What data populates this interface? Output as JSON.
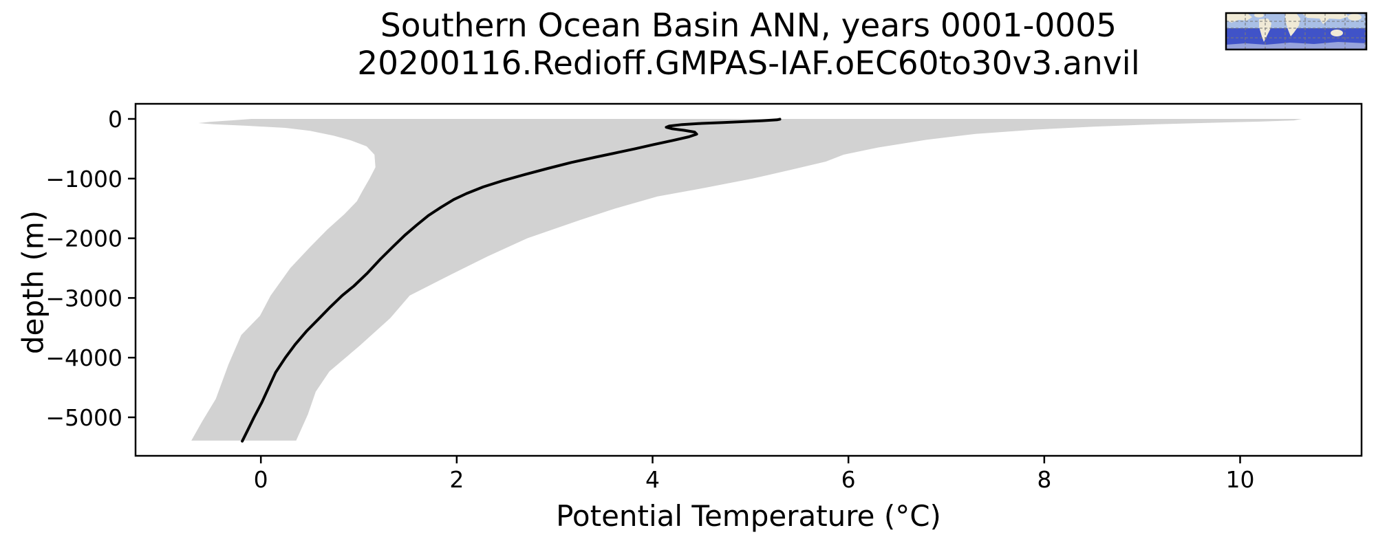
{
  "title": {
    "line1": "Southern Ocean Basin ANN, years 0001-0005",
    "line2": "20200116.Redioff.GMPAS-IAF.oEC60to30v3.anvil"
  },
  "chart_data": {
    "type": "line",
    "title": "Southern Ocean Basin ANN, years 0001-0005",
    "subtitle": "20200116.Redioff.GMPAS-IAF.oEC60to30v3.anvil",
    "xlabel": "Potential Temperature (°C)",
    "ylabel": "depth (m)",
    "xlim": [
      -1.28,
      11.24
    ],
    "ylim": [
      -5645,
      253
    ],
    "grid": false,
    "legend": "none",
    "x_ticks": [
      0,
      2,
      4,
      6,
      8,
      10
    ],
    "x_tick_labels": [
      "0",
      "2",
      "4",
      "6",
      "8",
      "10"
    ],
    "y_ticks": [
      0,
      -1000,
      -2000,
      -3000,
      -4000,
      -5000
    ],
    "y_tick_labels": [
      "0",
      "−1000",
      "−2000",
      "−3000",
      "−4000",
      "−5000"
    ],
    "series": [
      {
        "name": "mean_temperature_profile",
        "type": "line",
        "color": "#000000",
        "line_width": 4,
        "points_depth_temp": [
          [
            -5,
            5.3
          ],
          [
            -15,
            5.27
          ],
          [
            -30,
            5.12
          ],
          [
            -45,
            4.93
          ],
          [
            -60,
            4.72
          ],
          [
            -75,
            4.5
          ],
          [
            -95,
            4.3
          ],
          [
            -120,
            4.17
          ],
          [
            -140,
            4.14
          ],
          [
            -165,
            4.2
          ],
          [
            -190,
            4.32
          ],
          [
            -220,
            4.43
          ],
          [
            -255,
            4.45
          ],
          [
            -300,
            4.37
          ],
          [
            -360,
            4.21
          ],
          [
            -430,
            4.01
          ],
          [
            -500,
            3.82
          ],
          [
            -560,
            3.65
          ],
          [
            -640,
            3.42
          ],
          [
            -730,
            3.17
          ],
          [
            -830,
            2.93
          ],
          [
            -930,
            2.7
          ],
          [
            -1030,
            2.48
          ],
          [
            -1140,
            2.27
          ],
          [
            -1250,
            2.1
          ],
          [
            -1350,
            1.97
          ],
          [
            -1480,
            1.84
          ],
          [
            -1620,
            1.71
          ],
          [
            -1780,
            1.59
          ],
          [
            -1950,
            1.47
          ],
          [
            -2140,
            1.35
          ],
          [
            -2350,
            1.22
          ],
          [
            -2580,
            1.09
          ],
          [
            -2800,
            0.95
          ],
          [
            -2960,
            0.83
          ],
          [
            -3150,
            0.71
          ],
          [
            -3350,
            0.59
          ],
          [
            -3550,
            0.47
          ],
          [
            -3780,
            0.35
          ],
          [
            -4000,
            0.25
          ],
          [
            -4250,
            0.15
          ],
          [
            -4500,
            0.08
          ],
          [
            -4750,
            0.01
          ],
          [
            -5000,
            -0.07
          ],
          [
            -5200,
            -0.13
          ],
          [
            -5400,
            -0.19
          ]
        ]
      },
      {
        "name": "min_max_range_band",
        "type": "band",
        "color": "#d2d2d2",
        "min_depth_temp": [
          [
            0,
            -0.1
          ],
          [
            -25,
            -0.3
          ],
          [
            -50,
            -0.52
          ],
          [
            -70,
            -0.64
          ],
          [
            -90,
            -0.48
          ],
          [
            -115,
            -0.15
          ],
          [
            -150,
            0.25
          ],
          [
            -200,
            0.5
          ],
          [
            -280,
            0.74
          ],
          [
            -360,
            0.92
          ],
          [
            -460,
            1.08
          ],
          [
            -600,
            1.16
          ],
          [
            -810,
            1.17
          ],
          [
            -1000,
            1.11
          ],
          [
            -1200,
            1.04
          ],
          [
            -1380,
            0.98
          ],
          [
            -1600,
            0.85
          ],
          [
            -1850,
            0.68
          ],
          [
            -2150,
            0.5
          ],
          [
            -2500,
            0.3
          ],
          [
            -2960,
            0.1
          ],
          [
            -3300,
            -0.01
          ],
          [
            -3620,
            -0.2
          ],
          [
            -4110,
            -0.33
          ],
          [
            -4690,
            -0.46
          ],
          [
            -5070,
            -0.6
          ],
          [
            -5390,
            -0.71
          ]
        ],
        "max_depth_temp": [
          [
            0,
            10.63
          ],
          [
            -25,
            10.55
          ],
          [
            -45,
            10.2
          ],
          [
            -65,
            9.7
          ],
          [
            -90,
            9.15
          ],
          [
            -130,
            8.5
          ],
          [
            -180,
            7.9
          ],
          [
            -250,
            7.3
          ],
          [
            -350,
            6.8
          ],
          [
            -480,
            6.3
          ],
          [
            -600,
            5.95
          ],
          [
            -715,
            5.77
          ],
          [
            -850,
            5.42
          ],
          [
            -1000,
            5.02
          ],
          [
            -1150,
            4.55
          ],
          [
            -1300,
            4.05
          ],
          [
            -1500,
            3.62
          ],
          [
            -1700,
            3.25
          ],
          [
            -2000,
            2.72
          ],
          [
            -2300,
            2.32
          ],
          [
            -2600,
            1.95
          ],
          [
            -2960,
            1.52
          ],
          [
            -3340,
            1.32
          ],
          [
            -3800,
            1.01
          ],
          [
            -4230,
            0.7
          ],
          [
            -4570,
            0.56
          ],
          [
            -4950,
            0.48
          ],
          [
            -5390,
            0.36
          ]
        ]
      }
    ]
  },
  "inset_map": {
    "name": "southern-ocean-region-locator",
    "ocean_color": "#a9bfe6",
    "region_color": "#4053c8",
    "antarctica_color": "#98a4dc",
    "land_color": "#f0ead6",
    "grid_color": "#7a7a7a",
    "border_color": "#000000"
  }
}
